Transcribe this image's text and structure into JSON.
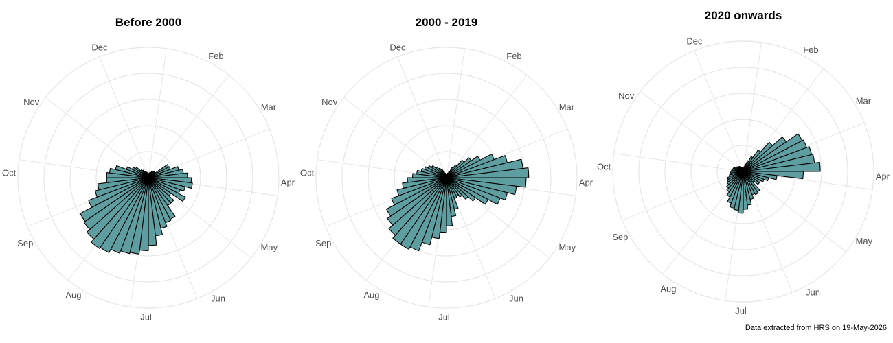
{
  "caption": "Data extracted from HRS on 19-May-2026.",
  "colors": {
    "bar_fill": "#5f9ea0",
    "bar_stroke": "#000000",
    "grid": "#e6e6e6",
    "label": "#4d4d4d"
  },
  "chart_data": [
    {
      "type": "bar",
      "coordinate": "polar",
      "title": "Before 2000",
      "theta_labels": [
        "Dec",
        "Feb",
        "Mar",
        "Apr",
        "May",
        "Jun",
        "Jul",
        "Aug",
        "Sep",
        "Oct",
        "Nov"
      ],
      "rlim": [
        0,
        5
      ],
      "grid": true,
      "x": [
        1,
        2,
        3,
        4,
        5,
        6,
        7,
        8,
        9,
        10,
        11,
        12,
        13,
        14,
        15,
        16,
        17,
        18,
        19,
        20,
        21,
        22,
        23,
        24,
        25,
        26,
        27,
        28,
        29,
        30,
        31,
        32,
        33,
        34,
        35,
        36,
        37,
        38,
        39,
        40,
        41,
        42,
        43,
        44,
        45,
        46,
        47,
        48,
        49,
        50,
        51,
        52
      ],
      "values": [
        0.14,
        0.18,
        0.2,
        0.22,
        0.26,
        0.28,
        0.32,
        0.3,
        0.88,
        0.9,
        1.2,
        1.35,
        1.5,
        1.65,
        1.7,
        1.45,
        1.3,
        1.6,
        1.05,
        1.3,
        1.3,
        1.8,
        1.85,
        2.0,
        2.25,
        2.6,
        2.8,
        2.95,
        3.0,
        3.1,
        3.25,
        3.3,
        3.15,
        3.0,
        2.95,
        2.45,
        2.1,
        1.95,
        1.6,
        1.6,
        1.5,
        1.3,
        0.9,
        0.7,
        0.6,
        0.4,
        0.35,
        0.28,
        0.24,
        0.22,
        0.18,
        0.14
      ]
    },
    {
      "type": "bar",
      "coordinate": "polar",
      "title": "2000 - 2019",
      "theta_labels": [
        "Dec",
        "Feb",
        "Mar",
        "Apr",
        "May",
        "Jun",
        "Jul",
        "Aug",
        "Sep",
        "Oct",
        "Nov"
      ],
      "rlim": [
        0,
        5
      ],
      "grid": true,
      "x": [
        1,
        2,
        3,
        4,
        5,
        6,
        7,
        8,
        9,
        10,
        11,
        12,
        13,
        14,
        15,
        16,
        17,
        18,
        19,
        20,
        21,
        22,
        23,
        24,
        25,
        26,
        27,
        28,
        29,
        30,
        31,
        32,
        33,
        34,
        35,
        36,
        37,
        38,
        39,
        40,
        41,
        42,
        43,
        44,
        45,
        46,
        47,
        48,
        49,
        50,
        51,
        52
      ],
      "values": [
        0.1,
        0.12,
        0.18,
        0.25,
        0.45,
        0.6,
        0.9,
        1.15,
        1.45,
        1.95,
        2.4,
        2.95,
        3.15,
        3.05,
        2.7,
        2.4,
        2.2,
        1.8,
        1.35,
        1.1,
        0.9,
        0.8,
        0.85,
        1.25,
        1.5,
        1.85,
        2.1,
        2.35,
        2.65,
        3.0,
        3.1,
        3.1,
        2.95,
        2.75,
        2.6,
        2.25,
        1.95,
        1.7,
        1.5,
        1.3,
        1.15,
        1.0,
        0.9,
        0.8,
        0.7,
        0.55,
        0.45,
        0.38,
        0.28,
        0.18,
        0.12,
        0.1
      ]
    },
    {
      "type": "bar",
      "coordinate": "polar",
      "title": "2020 onwards",
      "theta_labels": [
        "Dec",
        "Feb",
        "Mar",
        "Apr",
        "May",
        "Jun",
        "Jul",
        "Aug",
        "Sep",
        "Oct",
        "Nov"
      ],
      "rlim": [
        0,
        5
      ],
      "grid": true,
      "x": [
        1,
        2,
        3,
        4,
        5,
        6,
        7,
        8,
        9,
        10,
        11,
        12,
        13,
        14,
        15,
        16,
        17,
        18,
        19,
        20,
        21,
        22,
        23,
        24,
        25,
        26,
        27,
        28,
        29,
        30,
        31,
        32,
        33,
        34,
        35,
        36,
        37,
        38,
        39,
        40,
        41,
        42,
        43,
        44,
        45,
        46,
        47,
        48,
        49,
        50,
        51,
        52
      ],
      "values": [
        0.12,
        0.18,
        0.3,
        0.45,
        0.65,
        1.0,
        1.5,
        2.0,
        2.55,
        2.6,
        2.7,
        2.75,
        2.95,
        2.3,
        1.3,
        1.0,
        0.85,
        0.75,
        0.75,
        0.55,
        0.95,
        1.0,
        0.95,
        1.1,
        1.3,
        1.45,
        1.6,
        1.5,
        1.45,
        1.3,
        1.1,
        0.95,
        0.85,
        0.75,
        0.7,
        0.65,
        0.55,
        0.5,
        0.48,
        0.45,
        0.42,
        0.4,
        0.36,
        0.32,
        0.28,
        0.26,
        0.24,
        0.2,
        0.18,
        0.16,
        0.14,
        0.12
      ]
    }
  ]
}
